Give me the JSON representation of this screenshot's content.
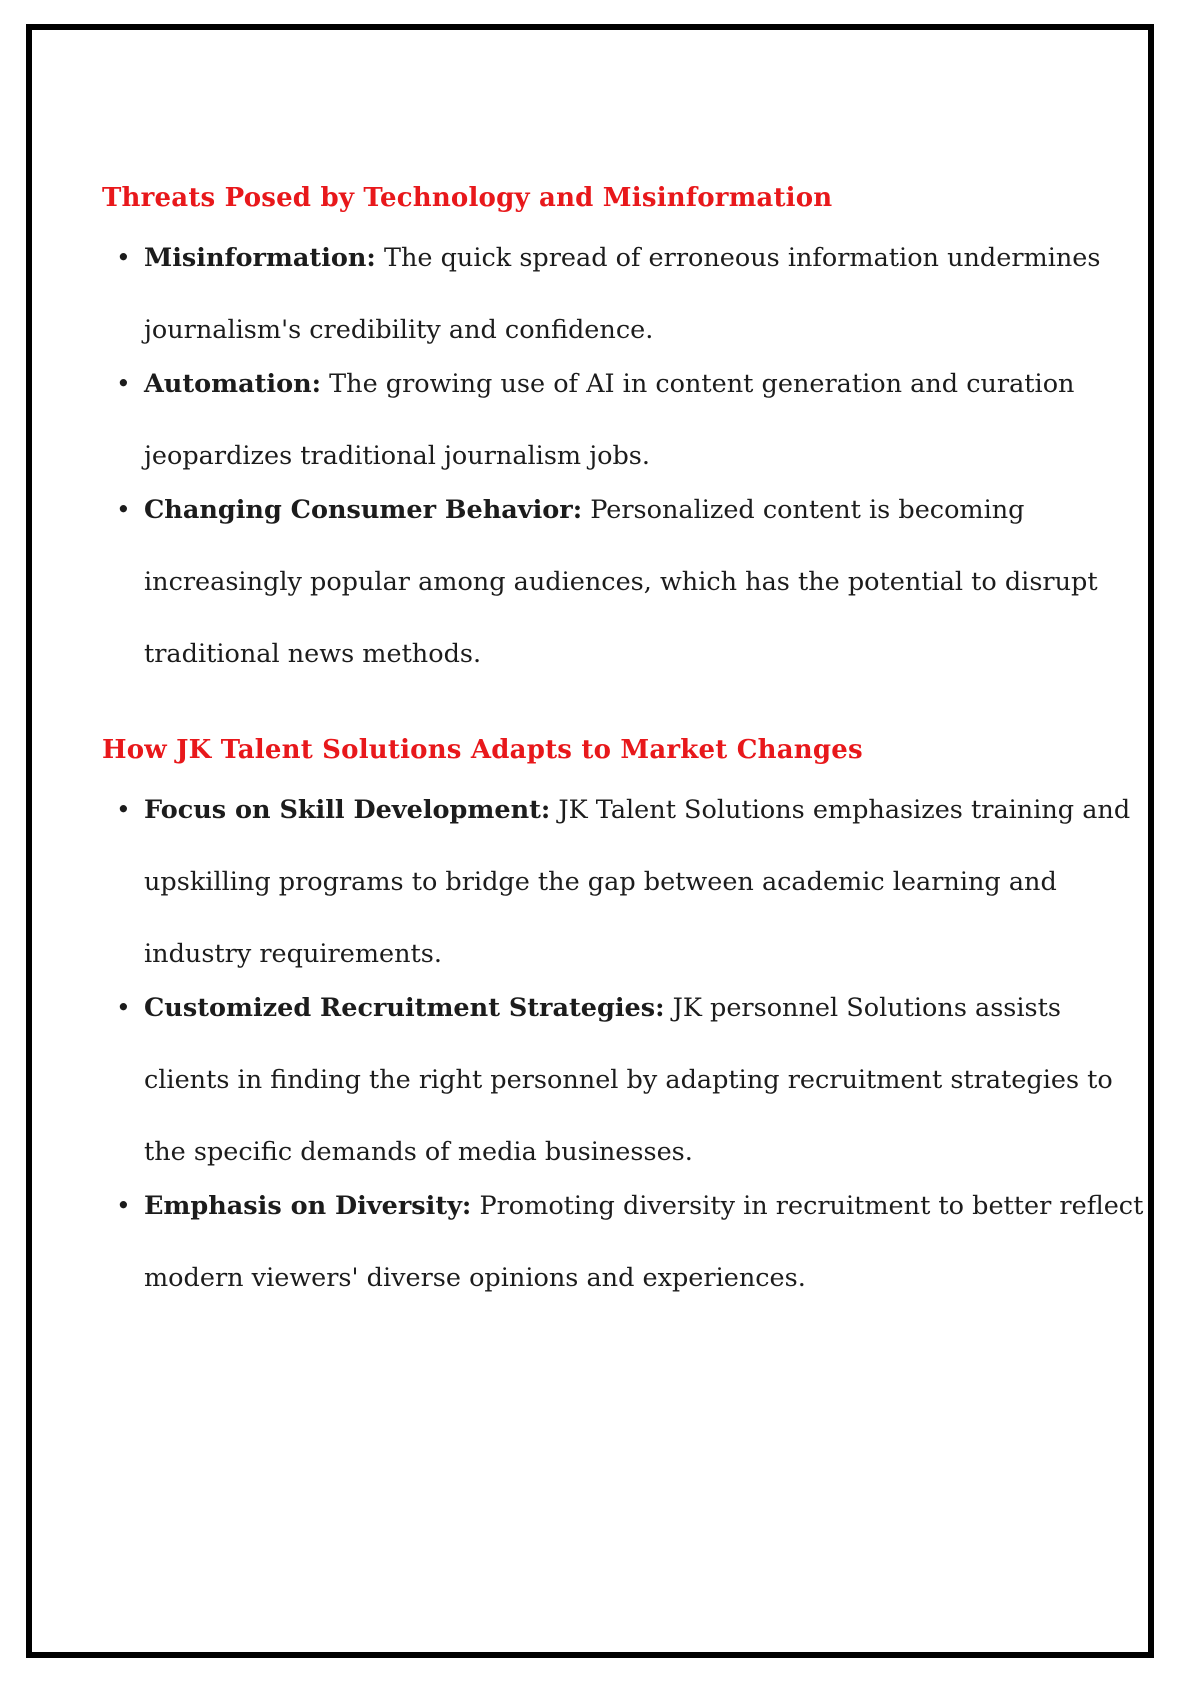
{
  "sections": [
    {
      "title": "Threats Posed by Technology and Misinformation",
      "items": [
        {
          "term": "Misinformation:",
          "text": "The quick spread of erroneous information undermines journalism's credibility and confidence."
        },
        {
          "term": "Automation:",
          "text": "The growing use of AI in content generation and curation jeopardizes traditional journalism jobs."
        },
        {
          "term": "Changing Consumer Behavior:",
          "text": "Personalized content is becoming increasingly popular among audiences, which has the potential to disrupt traditional news methods."
        }
      ]
    },
    {
      "title": "How JK Talent Solutions Adapts to Market Changes",
      "items": [
        {
          "term": "Focus on Skill Development:",
          "text": "JK Talent Solutions emphasizes training and upskilling programs to bridge the gap between academic learning and industry requirements."
        },
        {
          "term": "Customized Recruitment Strategies:",
          "text": "JK personnel Solutions assists clients in finding the right personnel by adapting recruitment strategies to the specific demands of media businesses."
        },
        {
          "term": "Emphasis on Diversity:",
          "text": "Promoting diversity in recruitment to better reflect modern viewers' diverse opinions and experiences."
        }
      ]
    }
  ],
  "colors": {
    "heading": "#e8181b",
    "text": "#1c1c1c",
    "frame": "#000000"
  }
}
